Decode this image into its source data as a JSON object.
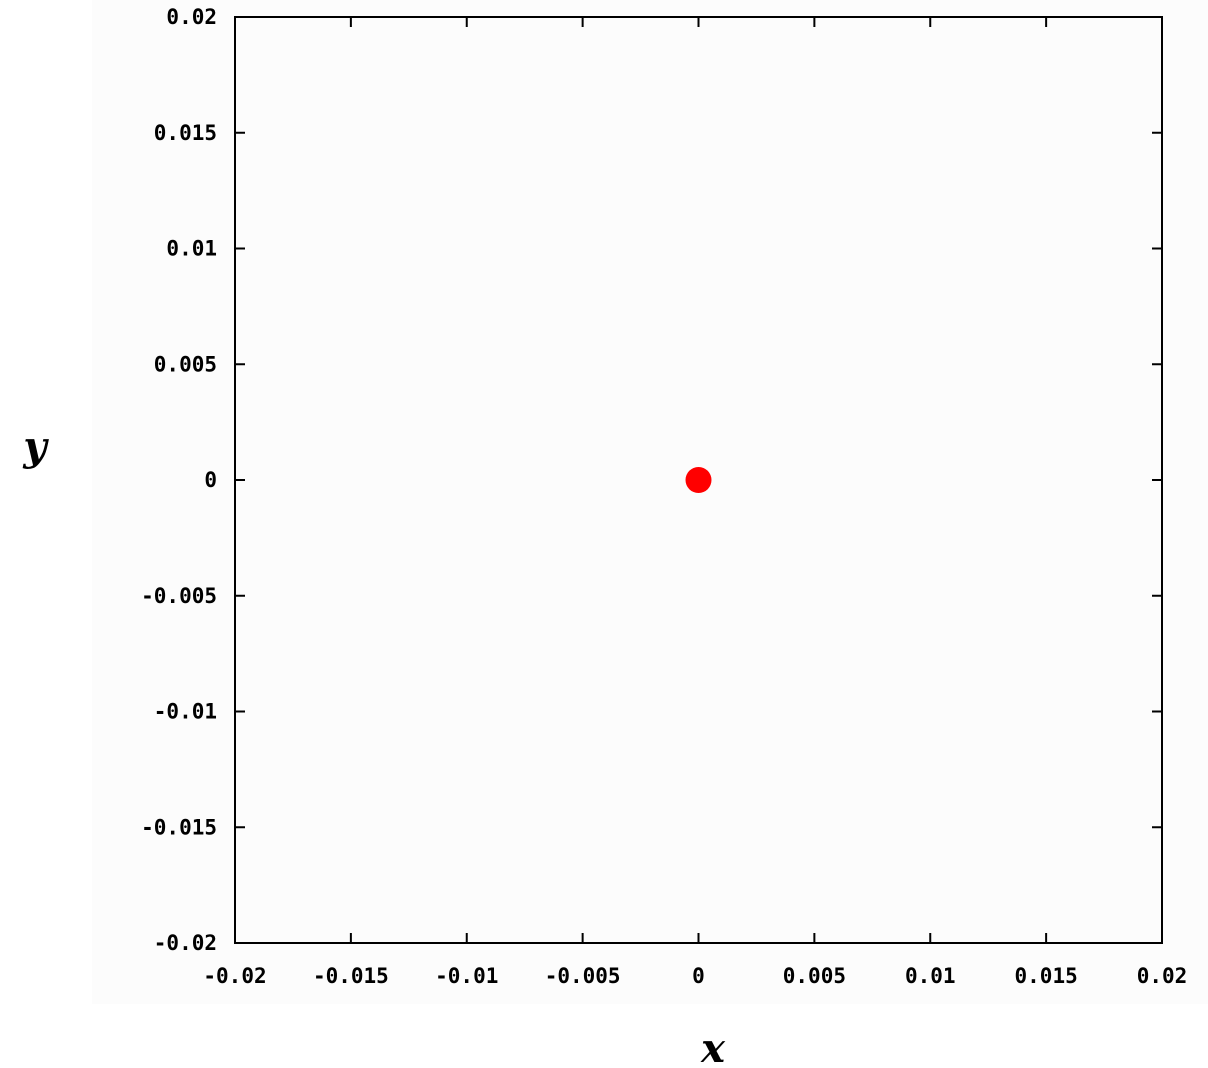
{
  "chart_data": {
    "type": "scatter",
    "title": "",
    "xlabel": "x",
    "ylabel": "y",
    "xlim": [
      -0.02,
      0.02
    ],
    "ylim": [
      -0.02,
      0.02
    ],
    "x_ticks": [
      "-0.02",
      "-0.015",
      "-0.01",
      "-0.005",
      "0",
      "0.005",
      "0.01",
      "0.015",
      "0.02"
    ],
    "y_ticks": [
      "0.02",
      "0.015",
      "0.01",
      "0.005",
      "0",
      "-0.005",
      "-0.01",
      "-0.015",
      "-0.02"
    ],
    "grid": false,
    "legend": "none",
    "series": [
      {
        "points": [
          {
            "x": 0,
            "y": 0
          }
        ],
        "color": "#ff0000"
      }
    ],
    "plot_background": "#fcfcfc"
  }
}
